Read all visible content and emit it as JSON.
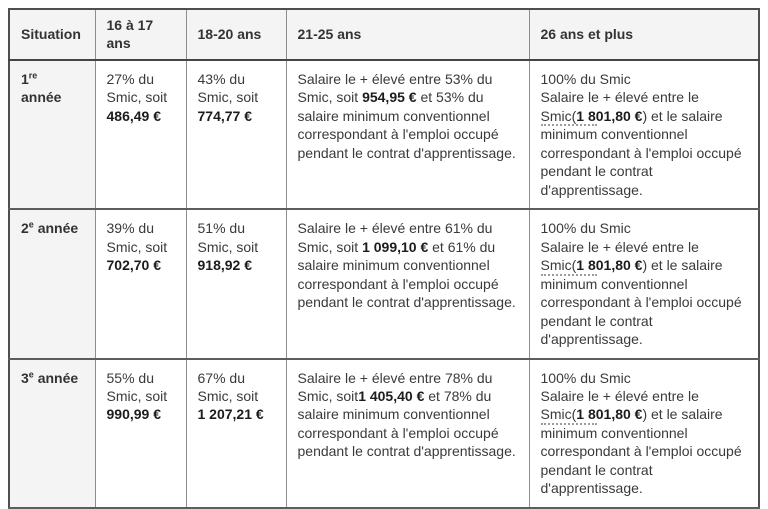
{
  "colors": {
    "header_background": "#f4f4f4",
    "row_label_background": "#f4f4f4",
    "text": "#3a3a3a",
    "outer_border": "#4f4f4f",
    "inner_border": "#8d8d8d",
    "dotted_term_marker": "#9c9c9c"
  },
  "table": {
    "headers": [
      {
        "label": "Situation"
      },
      {
        "label": "16 à 17 ans"
      },
      {
        "label": "18-20 ans"
      },
      {
        "label": "21-25 ans"
      },
      {
        "label": "26 ans et plus"
      }
    ],
    "rows": [
      {
        "label_segments": [
          {
            "t": "1"
          },
          {
            "t": "re",
            "sup": true
          },
          {
            "br": true
          },
          {
            "t": "année"
          }
        ],
        "cells": [
          [
            {
              "t": "27% du Smic, soit "
            },
            {
              "t": "486,49 €",
              "b": true
            }
          ],
          [
            {
              "t": "43% du Smic, soit "
            },
            {
              "t": "774,77 €",
              "b": true
            }
          ],
          [
            {
              "t": "Salaire le + élevé entre 53% du Smic, soit "
            },
            {
              "t": "954,95 €",
              "b": true
            },
            {
              "t": " et 53% du salaire minimum conventionnel correspondant à l'emploi occupé pendant le contrat d'apprentissage."
            }
          ],
          [
            {
              "t": "100% du Smic"
            },
            {
              "br": true
            },
            {
              "t": "Salaire le + élevé entre le Smic("
            },
            {
              "t": "1 801,80 €",
              "b": true
            },
            {
              "t": ") et le salaire "
            },
            {
              "t": "minimum",
              "dotted": true
            },
            {
              "t": " conventionnel correspondant à l'emploi occupé pendant le contrat d'apprentissage."
            }
          ]
        ]
      },
      {
        "label_segments": [
          {
            "t": "2"
          },
          {
            "t": "e",
            "sup": true
          },
          {
            "t": " année"
          }
        ],
        "cells": [
          [
            {
              "t": "39% du Smic, soit "
            },
            {
              "t": "702,70 €",
              "b": true
            }
          ],
          [
            {
              "t": "51% du Smic, soit "
            },
            {
              "t": "918,92 €",
              "b": true
            }
          ],
          [
            {
              "t": "Salaire le + élevé entre 61% du Smic, soit "
            },
            {
              "t": "1 099,10 €",
              "b": true
            },
            {
              "t": " et 61% du salaire minimum conventionnel correspondant à l'emploi occupé pendant le contrat d'apprentissage."
            }
          ],
          [
            {
              "t": "100% du Smic"
            },
            {
              "br": true
            },
            {
              "t": "Salaire le + élevé entre le Smic("
            },
            {
              "t": "1 801,80 €",
              "b": true
            },
            {
              "t": ") et le salaire "
            },
            {
              "t": "minimum",
              "dotted": true
            },
            {
              "t": " conventionnel correspondant à l'emploi occupé pendant le contrat d'apprentissage."
            }
          ]
        ]
      },
      {
        "label_segments": [
          {
            "t": "3"
          },
          {
            "t": "e",
            "sup": true
          },
          {
            "t": " année"
          }
        ],
        "cells": [
          [
            {
              "t": "55% du Smic, soit "
            },
            {
              "t": "990,99 €",
              "b": true
            }
          ],
          [
            {
              "t": "67% du Smic, soit "
            },
            {
              "t": "1 207,21 €",
              "b": true
            }
          ],
          [
            {
              "t": "Salaire le + élevé entre 78% du Smic, soit"
            },
            {
              "t": "1 405,40 €",
              "b": true
            },
            {
              "t": " et 78% du salaire minimum conventionnel correspondant à l'emploi occupé pendant le contrat d'apprentissage."
            }
          ],
          [
            {
              "t": "100% du Smic"
            },
            {
              "br": true
            },
            {
              "t": "Salaire le + élevé entre le Smic("
            },
            {
              "t": "1 801,80 €",
              "b": true
            },
            {
              "t": ") et le salaire "
            },
            {
              "t": "minimum",
              "dotted": true
            },
            {
              "t": " conventionnel correspondant à l'emploi occupé pendant le contrat d'apprentissage."
            }
          ]
        ]
      }
    ]
  }
}
